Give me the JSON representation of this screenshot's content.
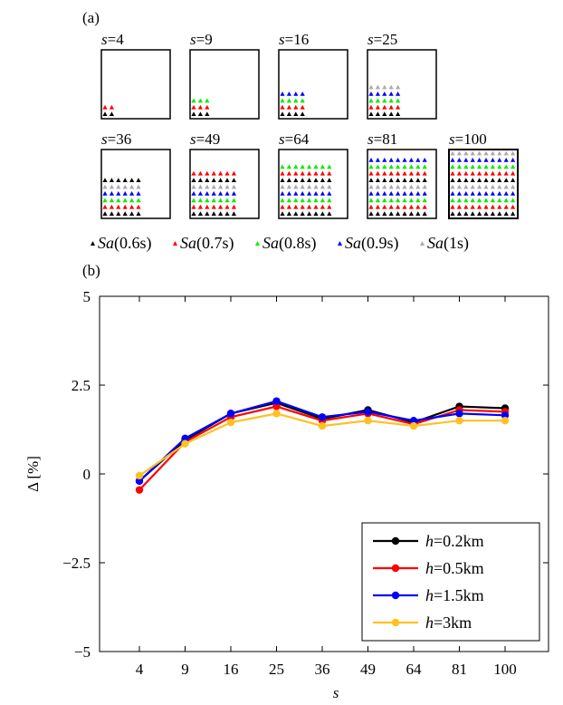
{
  "panel_a": {
    "label": "(a)",
    "grid_sizes": [
      {
        "label": "=4",
        "n": 2
      },
      {
        "label": "=9",
        "n": 3
      },
      {
        "label": "=16",
        "n": 4
      },
      {
        "label": "=25",
        "n": 5
      },
      {
        "label": "=36",
        "n": 6
      },
      {
        "label": "=49",
        "n": 7
      },
      {
        "label": "=64",
        "n": 8
      },
      {
        "label": "=81",
        "n": 9
      },
      {
        "label": "=100",
        "n": 10
      }
    ],
    "size_prefix": "s",
    "legend": [
      {
        "prefix": "Sa",
        "suffix": "(0.6s)",
        "color": "#000000"
      },
      {
        "prefix": "Sa",
        "suffix": "(0.7s)",
        "color": "#ff0000"
      },
      {
        "prefix": "Sa",
        "suffix": "(0.8s)",
        "color": "#00ee00"
      },
      {
        "prefix": "Sa",
        "suffix": "(0.9s)",
        "color": "#0000ff"
      },
      {
        "prefix": "Sa",
        "suffix": "(1s)",
        "color": "#aaaaaa"
      }
    ]
  },
  "panel_b": {
    "label": "(b)"
  },
  "chart_data": {
    "type": "line",
    "title": "",
    "xlabel": "s",
    "ylabel": "Δ [%]",
    "categories": [
      "4",
      "9",
      "16",
      "25",
      "36",
      "49",
      "64",
      "81",
      "100"
    ],
    "yticks": [
      5,
      2.5,
      0,
      -2.5,
      -5
    ],
    "ytick_labels": [
      "5",
      "2.5",
      "0",
      "−2.5",
      "−5"
    ],
    "ylim": [
      -5,
      5
    ],
    "grid": false,
    "legend_position": "bottom-right",
    "series": [
      {
        "name_prefix": "h",
        "name_suffix": "=0.2km",
        "color": "#000000",
        "values": [
          -0.2,
          0.95,
          1.7,
          2.0,
          1.55,
          1.8,
          1.45,
          1.9,
          1.85
        ]
      },
      {
        "name_prefix": "h",
        "name_suffix": "=0.5km",
        "color": "#ff0000",
        "values": [
          -0.45,
          0.9,
          1.6,
          1.9,
          1.5,
          1.7,
          1.4,
          1.8,
          1.75
        ]
      },
      {
        "name_prefix": "h",
        "name_suffix": "=1.5km",
        "color": "#0000ff",
        "values": [
          -0.2,
          1.0,
          1.7,
          2.05,
          1.6,
          1.75,
          1.5,
          1.7,
          1.65
        ]
      },
      {
        "name_prefix": "h",
        "name_suffix": "=3km",
        "color": "#ffc020",
        "values": [
          -0.05,
          0.85,
          1.45,
          1.7,
          1.35,
          1.5,
          1.35,
          1.5,
          1.5
        ]
      }
    ]
  }
}
